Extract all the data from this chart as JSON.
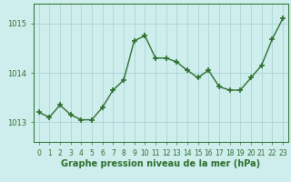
{
  "x": [
    0,
    1,
    2,
    3,
    4,
    5,
    6,
    7,
    8,
    9,
    10,
    11,
    12,
    13,
    14,
    15,
    16,
    17,
    18,
    19,
    20,
    21,
    22,
    23
  ],
  "y": [
    1013.2,
    1013.1,
    1013.35,
    1013.15,
    1013.05,
    1013.05,
    1013.3,
    1013.65,
    1013.85,
    1014.65,
    1014.75,
    1014.3,
    1014.3,
    1014.22,
    1014.05,
    1013.9,
    1014.05,
    1013.72,
    1013.65,
    1013.65,
    1013.9,
    1014.15,
    1014.68,
    1015.1
  ],
  "line_color": "#2d6e2d",
  "marker": "+",
  "marker_size": 4,
  "marker_lw": 1.2,
  "line_width": 1.0,
  "background_color": "#ceeeed",
  "grid_color": "#a8d4d2",
  "axis_color": "#2d6e2d",
  "tick_color": "#2d6e2d",
  "label_color": "#2d6e2d",
  "xlabel": "Graphe pression niveau de la mer (hPa)",
  "yticks": [
    1013,
    1014,
    1015
  ],
  "ylim": [
    1012.6,
    1015.4
  ],
  "xlim": [
    -0.5,
    23.5
  ],
  "xlabel_fontsize": 7.0,
  "tick_fontsize": 6.0
}
